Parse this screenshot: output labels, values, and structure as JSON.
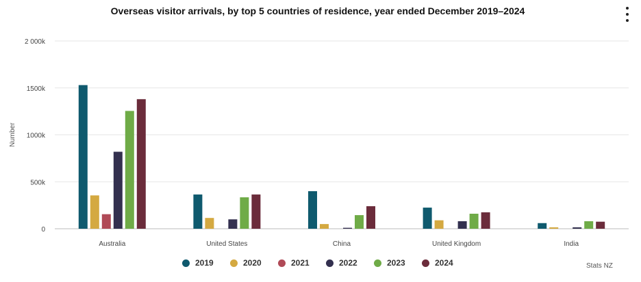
{
  "chart_data": {
    "type": "bar",
    "title": "Overseas visitor arrivals, by top 5 countries of residence, year ended December 2019–2024",
    "ylabel": "Number",
    "xlabel": "",
    "ylim": [
      0,
      2000000
    ],
    "yticks": [
      0,
      500000,
      1000000,
      1500000,
      2000000
    ],
    "ytick_labels": [
      "0",
      "500k",
      "1000k",
      "1500k",
      "2 000k"
    ],
    "categories": [
      "Australia",
      "United States",
      "China",
      "United Kingdom",
      "India"
    ],
    "series": [
      {
        "name": "2019",
        "color": "#0f5a6e",
        "values": [
          1530000,
          365000,
          400000,
          225000,
          60000
        ]
      },
      {
        "name": "2020",
        "color": "#d4a941",
        "values": [
          355000,
          115000,
          50000,
          90000,
          15000
        ]
      },
      {
        "name": "2021",
        "color": "#b04a57",
        "values": [
          155000,
          0,
          0,
          0,
          0
        ]
      },
      {
        "name": "2022",
        "color": "#33304f",
        "values": [
          820000,
          100000,
          10000,
          80000,
          15000
        ]
      },
      {
        "name": "2023",
        "color": "#6fab47",
        "values": [
          1255000,
          335000,
          145000,
          160000,
          80000
        ]
      },
      {
        "name": "2024",
        "color": "#6b2c3b",
        "values": [
          1380000,
          365000,
          240000,
          175000,
          75000
        ]
      }
    ],
    "grid": true,
    "legend_position": "bottom"
  },
  "credit": "Stats NZ",
  "menu_icon": "more-vertical-icon"
}
